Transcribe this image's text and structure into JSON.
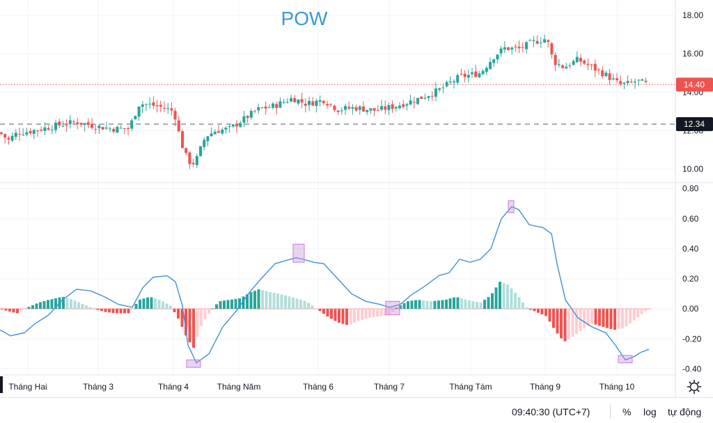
{
  "chart_data": [
    {
      "type": "candlestick",
      "title": "POW",
      "ylim": [
        9.3,
        18.8
      ],
      "yticks": [
        "18.00",
        "16.00",
        "14.00",
        "12.00",
        "10.00"
      ],
      "last_price_label": "14.40",
      "reference_line_label": "12.34",
      "last_price": 14.4,
      "reference_line": 12.34,
      "colors": {
        "up": "#26a69a",
        "down": "#ef5350",
        "last_line": "#ef5350",
        "ref_tag": "#131722"
      },
      "anchors": [
        [
          0,
          11.9
        ],
        [
          12,
          11.5
        ],
        [
          25,
          11.9
        ],
        [
          40,
          11.95
        ],
        [
          60,
          12.1
        ],
        [
          85,
          12.3
        ],
        [
          110,
          12.45
        ],
        [
          135,
          12.25
        ],
        [
          160,
          12.1
        ],
        [
          185,
          12.1
        ],
        [
          200,
          13.4
        ],
        [
          215,
          13.35
        ],
        [
          235,
          13.2
        ],
        [
          250,
          13.0
        ],
        [
          260,
          11.4
        ],
        [
          270,
          10.4
        ],
        [
          280,
          10.3
        ],
        [
          295,
          11.7
        ],
        [
          310,
          12.0
        ],
        [
          330,
          12.1
        ],
        [
          350,
          12.6
        ],
        [
          370,
          13.1
        ],
        [
          395,
          13.3
        ],
        [
          420,
          13.7
        ],
        [
          440,
          13.4
        ],
        [
          465,
          13.6
        ],
        [
          485,
          13.1
        ],
        [
          510,
          13.2
        ],
        [
          540,
          13.05
        ],
        [
          570,
          13.3
        ],
        [
          600,
          13.65
        ],
        [
          630,
          14.1
        ],
        [
          660,
          14.8
        ],
        [
          690,
          15.0
        ],
        [
          710,
          15.9
        ],
        [
          725,
          16.3
        ],
        [
          745,
          16.25
        ],
        [
          765,
          16.6
        ],
        [
          785,
          16.8
        ],
        [
          795,
          15.6
        ],
        [
          810,
          15.3
        ],
        [
          830,
          15.7
        ],
        [
          850,
          15.3
        ],
        [
          870,
          14.9
        ],
        [
          890,
          14.4
        ],
        [
          905,
          14.45
        ],
        [
          915,
          14.6
        ],
        [
          930,
          14.4
        ]
      ]
    },
    {
      "type": "line+histogram",
      "ylim": [
        -0.44,
        0.84
      ],
      "yticks": [
        "0.80",
        "0.60",
        "0.40",
        "0.20",
        "0.00",
        "-0.20",
        "-0.40"
      ],
      "line_color": "#3d8fd8",
      "hist_colors": {
        "pos_up": "#26a69a",
        "pos_down": "#b2dfdb",
        "neg_down": "#ef5350",
        "neg_up": "#ffcdd2"
      },
      "line": [
        [
          0,
          -0.14
        ],
        [
          15,
          -0.18
        ],
        [
          35,
          -0.16
        ],
        [
          50,
          -0.1
        ],
        [
          70,
          -0.04
        ],
        [
          90,
          0.06
        ],
        [
          110,
          0.13
        ],
        [
          130,
          0.12
        ],
        [
          150,
          0.08
        ],
        [
          170,
          0.03
        ],
        [
          190,
          0.01
        ],
        [
          205,
          0.14
        ],
        [
          220,
          0.21
        ],
        [
          240,
          0.22
        ],
        [
          252,
          0.18
        ],
        [
          262,
          0.02
        ],
        [
          270,
          -0.24
        ],
        [
          282,
          -0.36
        ],
        [
          300,
          -0.3
        ],
        [
          320,
          -0.12
        ],
        [
          340,
          -0.01
        ],
        [
          360,
          0.12
        ],
        [
          375,
          0.2
        ],
        [
          395,
          0.3
        ],
        [
          410,
          0.32
        ],
        [
          425,
          0.34
        ],
        [
          435,
          0.33
        ],
        [
          450,
          0.31
        ],
        [
          465,
          0.3
        ],
        [
          485,
          0.2
        ],
        [
          505,
          0.1
        ],
        [
          525,
          0.05
        ],
        [
          545,
          0.03
        ],
        [
          560,
          0.01
        ],
        [
          575,
          0.03
        ],
        [
          590,
          0.09
        ],
        [
          610,
          0.15
        ],
        [
          630,
          0.22
        ],
        [
          645,
          0.24
        ],
        [
          660,
          0.33
        ],
        [
          675,
          0.31
        ],
        [
          690,
          0.33
        ],
        [
          705,
          0.4
        ],
        [
          720,
          0.6
        ],
        [
          735,
          0.68
        ],
        [
          745,
          0.66
        ],
        [
          760,
          0.56
        ],
        [
          780,
          0.54
        ],
        [
          792,
          0.5
        ],
        [
          800,
          0.3
        ],
        [
          812,
          0.06
        ],
        [
          830,
          -0.06
        ],
        [
          850,
          -0.12
        ],
        [
          870,
          -0.16
        ],
        [
          885,
          -0.25
        ],
        [
          898,
          -0.34
        ],
        [
          910,
          -0.32
        ],
        [
          920,
          -0.29
        ],
        [
          932,
          -0.27
        ]
      ],
      "hist": [
        [
          0,
          0.0
        ],
        [
          15,
          -0.02
        ],
        [
          25,
          -0.03
        ],
        [
          40,
          0.01
        ],
        [
          55,
          0.04
        ],
        [
          70,
          0.06
        ],
        [
          90,
          0.08
        ],
        [
          105,
          0.06
        ],
        [
          120,
          0.03
        ],
        [
          135,
          0.0
        ],
        [
          150,
          -0.02
        ],
        [
          165,
          -0.03
        ],
        [
          185,
          -0.03
        ],
        [
          200,
          0.06
        ],
        [
          215,
          0.08
        ],
        [
          230,
          0.06
        ],
        [
          245,
          0.02
        ],
        [
          258,
          -0.08
        ],
        [
          265,
          -0.16
        ],
        [
          272,
          -0.22
        ],
        [
          278,
          -0.26
        ],
        [
          290,
          -0.1
        ],
        [
          305,
          0.0
        ],
        [
          315,
          0.05
        ],
        [
          330,
          0.06
        ],
        [
          345,
          0.07
        ],
        [
          360,
          0.11
        ],
        [
          372,
          0.13
        ],
        [
          390,
          0.11
        ],
        [
          410,
          0.09
        ],
        [
          425,
          0.07
        ],
        [
          440,
          0.05
        ],
        [
          455,
          0.0
        ],
        [
          470,
          -0.05
        ],
        [
          485,
          -0.09
        ],
        [
          500,
          -0.11
        ],
        [
          515,
          -0.08
        ],
        [
          530,
          -0.06
        ],
        [
          545,
          -0.05
        ],
        [
          560,
          -0.04
        ],
        [
          570,
          0.01
        ],
        [
          585,
          0.05
        ],
        [
          600,
          0.06
        ],
        [
          620,
          0.05
        ],
        [
          640,
          0.06
        ],
        [
          655,
          0.08
        ],
        [
          670,
          0.06
        ],
        [
          690,
          0.04
        ],
        [
          705,
          0.09
        ],
        [
          718,
          0.18
        ],
        [
          730,
          0.16
        ],
        [
          745,
          0.08
        ],
        [
          758,
          0.0
        ],
        [
          770,
          -0.02
        ],
        [
          785,
          -0.05
        ],
        [
          798,
          -0.15
        ],
        [
          810,
          -0.22
        ],
        [
          822,
          -0.19
        ],
        [
          838,
          -0.13
        ],
        [
          852,
          -0.1
        ],
        [
          866,
          -0.12
        ],
        [
          882,
          -0.14
        ],
        [
          896,
          -0.13
        ],
        [
          910,
          -0.08
        ],
        [
          925,
          -0.02
        ],
        [
          935,
          0.0
        ]
      ],
      "highlights": [
        [
          278,
          -0.39,
          -0.34
        ],
        [
          429,
          0.31,
          0.43
        ],
        [
          564,
          -0.04,
          0.05
        ],
        [
          734,
          0.64,
          0.72
        ],
        [
          898,
          -0.36,
          -0.31
        ]
      ],
      "highlight_color": "#c77dd9"
    }
  ],
  "x_axis": {
    "labels": [
      "Tháng Hai",
      "Tháng 3",
      "Tháng 4",
      "Tháng Năm",
      "Tháng 6",
      "Tháng 7",
      "Tháng Tám",
      "Tháng 9",
      "Tháng 10"
    ]
  },
  "footer": {
    "time": "09:40:30 (UTC+7)",
    "percent": "%",
    "log": "log",
    "auto": "tự động"
  }
}
